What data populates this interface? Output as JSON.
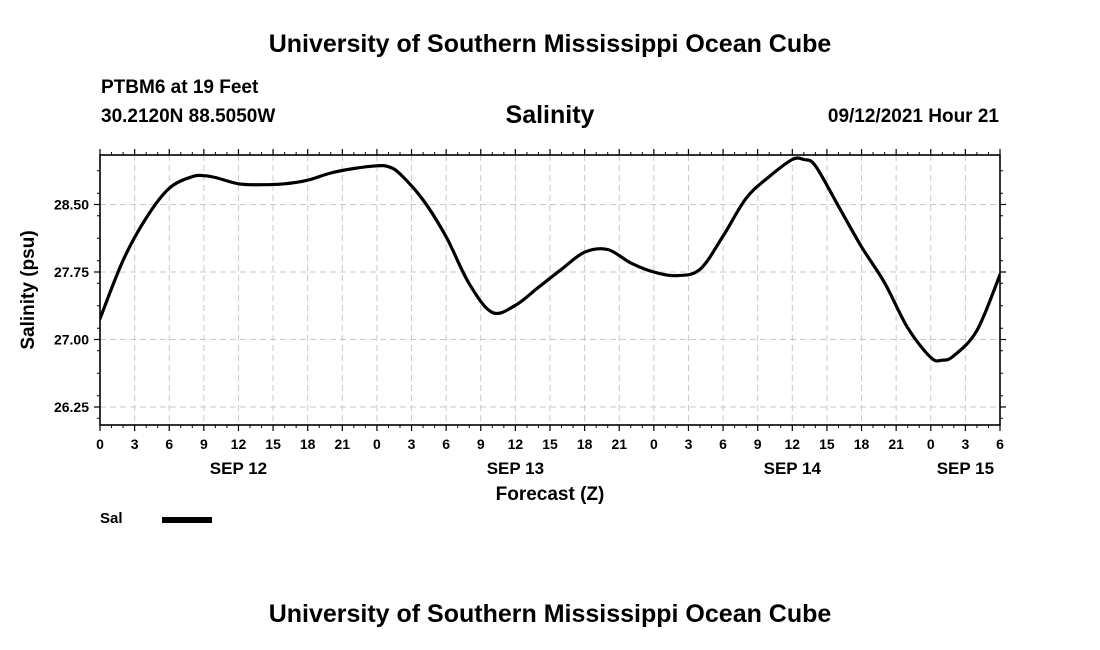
{
  "header": {
    "top_title": "University of Southern Mississippi Ocean Cube",
    "station": "PTBM6 at 19 Feet",
    "coords": "30.2120N  88.5050W",
    "subtitle": "Salinity",
    "datetime": "09/12/2021 Hour 21",
    "bottom_title": "University of Southern Mississippi Ocean Cube"
  },
  "legend": {
    "label": "Sal"
  },
  "chart_data": {
    "type": "line",
    "title": "Salinity",
    "xlabel": "Forecast (Z)",
    "ylabel": "Salinity (psu)",
    "x_unit": "hours from SEP 12 00Z",
    "xlim": [
      0,
      78
    ],
    "ylim": [
      26.05,
      29.05
    ],
    "y_ticks": [
      26.25,
      27.0,
      27.75,
      28.5
    ],
    "y_tick_labels": [
      "26.25",
      "27.00",
      "27.75",
      "28.50"
    ],
    "x_ticks": [
      0,
      3,
      6,
      9,
      12,
      15,
      18,
      21,
      24,
      27,
      30,
      33,
      36,
      39,
      42,
      45,
      48,
      51,
      54,
      57,
      60,
      63,
      66,
      69,
      72,
      75,
      78
    ],
    "x_tick_labels": [
      "0",
      "3",
      "6",
      "9",
      "12",
      "15",
      "18",
      "21",
      "0",
      "3",
      "6",
      "9",
      "12",
      "15",
      "18",
      "21",
      "0",
      "3",
      "6",
      "9",
      "12",
      "15",
      "18",
      "21",
      "0",
      "3",
      "6"
    ],
    "day_labels": [
      {
        "label": "SEP 12",
        "x": 12
      },
      {
        "label": "SEP 13",
        "x": 36
      },
      {
        "label": "SEP 14",
        "x": 60
      },
      {
        "label": "SEP 15",
        "x": 75
      }
    ],
    "grid": true,
    "line_color": "#000000",
    "series": [
      {
        "name": "Sal",
        "x": [
          0,
          2,
          4,
          6,
          8,
          9,
          10,
          12,
          14,
          16,
          18,
          20,
          22,
          24,
          25,
          26,
          28,
          30,
          32,
          34,
          36,
          38,
          40,
          42,
          44,
          46,
          48,
          50,
          52,
          54,
          56,
          58,
          60,
          61,
          62,
          64,
          66,
          68,
          70,
          72,
          73,
          74,
          76,
          78
        ],
        "y": [
          27.23,
          27.88,
          28.35,
          28.68,
          28.81,
          28.82,
          28.8,
          28.73,
          28.72,
          28.73,
          28.77,
          28.85,
          28.9,
          28.93,
          28.92,
          28.84,
          28.55,
          28.14,
          27.62,
          27.3,
          27.38,
          27.58,
          27.78,
          27.97,
          28.0,
          27.85,
          27.75,
          27.71,
          27.78,
          28.15,
          28.57,
          28.81,
          29.0,
          29.0,
          28.93,
          28.48,
          28.03,
          27.63,
          27.13,
          26.8,
          26.77,
          26.82,
          27.1,
          27.72
        ]
      }
    ]
  }
}
